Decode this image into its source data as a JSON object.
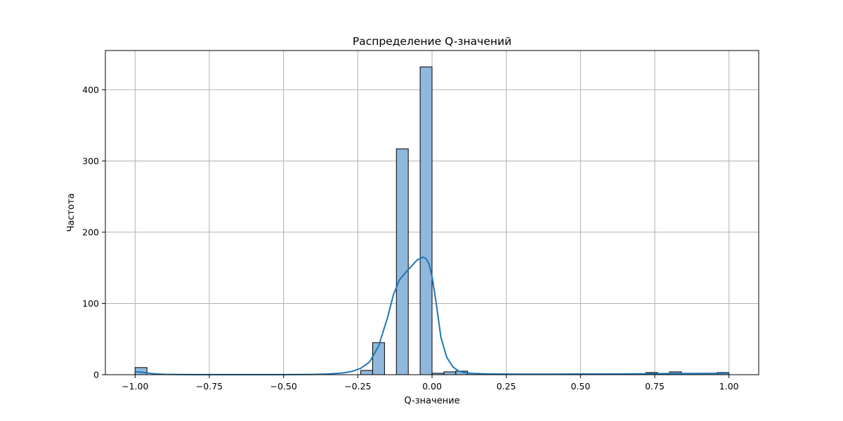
{
  "chart_data": {
    "type": "bar",
    "title": "Распределение Q-значений",
    "xlabel": "Q-значение",
    "ylabel": "Частота",
    "xlim": [
      -1.1,
      1.1
    ],
    "ylim": [
      0,
      455
    ],
    "x_ticks": [
      -1.0,
      -0.75,
      -0.5,
      -0.25,
      0.0,
      0.25,
      0.5,
      0.75,
      1.0
    ],
    "x_tick_labels": [
      "−1.00",
      "−0.75",
      "−0.50",
      "−0.25",
      "0.00",
      "0.25",
      "0.50",
      "0.75",
      "1.00"
    ],
    "y_ticks": [
      0,
      100,
      200,
      300,
      400
    ],
    "y_tick_labels": [
      "0",
      "100",
      "200",
      "300",
      "400"
    ],
    "grid": true,
    "bin_edges": [
      -1.0,
      -0.96,
      -0.92,
      -0.88,
      -0.84,
      -0.8,
      -0.76,
      -0.72,
      -0.68,
      -0.64,
      -0.6,
      -0.56,
      -0.52,
      -0.48,
      -0.44,
      -0.4,
      -0.36,
      -0.32,
      -0.28,
      -0.24,
      -0.2,
      -0.16,
      -0.12,
      -0.08,
      -0.04,
      0.0,
      0.04,
      0.08,
      0.12,
      0.16,
      0.2,
      0.24,
      0.28,
      0.32,
      0.36,
      0.4,
      0.44,
      0.48,
      0.52,
      0.56,
      0.6,
      0.64,
      0.68,
      0.72,
      0.76,
      0.8,
      0.84,
      0.88,
      0.92,
      0.96,
      1.0
    ],
    "counts": [
      10,
      0,
      0,
      0,
      0,
      0,
      0,
      0,
      0,
      0,
      0,
      0,
      0,
      0,
      0,
      0,
      0,
      0,
      0,
      6,
      45,
      0,
      317,
      0,
      432,
      2,
      4,
      5,
      2,
      1,
      1,
      1,
      0,
      0,
      0,
      0,
      0,
      0,
      1,
      0,
      0,
      0,
      0,
      3,
      1,
      4,
      2,
      2,
      2,
      3
    ],
    "kde": {
      "x": [
        -1.0,
        -0.98,
        -0.96,
        -0.94,
        -0.92,
        -0.9,
        -0.85,
        -0.8,
        -0.7,
        -0.6,
        -0.5,
        -0.4,
        -0.35,
        -0.3,
        -0.27,
        -0.24,
        -0.21,
        -0.18,
        -0.15,
        -0.13,
        -0.11,
        -0.09,
        -0.07,
        -0.05,
        -0.03,
        -0.02,
        -0.01,
        0.0,
        0.01,
        0.02,
        0.03,
        0.05,
        0.07,
        0.09,
        0.11,
        0.13,
        0.15,
        0.2,
        0.3,
        0.4,
        0.5,
        0.6,
        0.7,
        0.8,
        0.9,
        1.0
      ],
      "y": [
        4,
        3.6,
        2.5,
        1.5,
        0.9,
        0.5,
        0.2,
        0.1,
        0.05,
        0.05,
        0.1,
        0.4,
        1,
        2.5,
        4.5,
        9,
        18,
        40,
        80,
        112,
        133,
        143,
        152,
        161,
        165,
        163,
        155,
        138,
        112,
        82,
        52,
        24,
        11,
        5,
        3,
        2,
        1.5,
        1,
        0.8,
        0.8,
        1,
        1,
        1.3,
        1.6,
        1.8,
        2
      ]
    },
    "colors": {
      "bar_fill": "#8fb8dc",
      "bar_edge": "#000000",
      "kde_line": "#1f77b4",
      "grid": "#b0b0b0"
    }
  }
}
